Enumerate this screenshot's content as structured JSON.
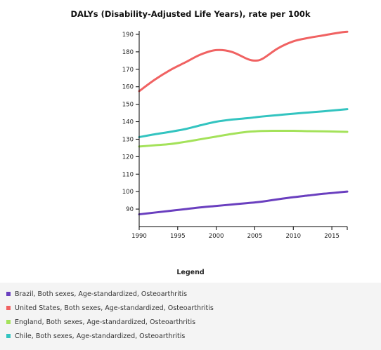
{
  "chart_data": {
    "type": "line",
    "title": "DALYs (Disability-Adjusted Life Years), rate per 100k",
    "xlabel": "",
    "ylabel": "",
    "xlim": [
      1990,
      2017
    ],
    "ylim": [
      80,
      192
    ],
    "x_ticks": [
      1990,
      1995,
      2000,
      2005,
      2010,
      2015
    ],
    "y_ticks": [
      90,
      100,
      110,
      120,
      130,
      140,
      150,
      160,
      170,
      180,
      190
    ],
    "x": [
      1990,
      1992,
      1994,
      1996,
      1998,
      2000,
      2002,
      2004,
      2005,
      2006,
      2008,
      2010,
      2012,
      2014,
      2016,
      2017
    ],
    "series": [
      {
        "name": "Brazil, Both sexes, Age-standardized, Osteoarthritis",
        "color": "#6a3fbf",
        "values": [
          87.0,
          88.0,
          89.0,
          90.0,
          91.0,
          91.8,
          92.6,
          93.4,
          93.8,
          94.3,
          95.6,
          96.8,
          97.8,
          98.8,
          99.6,
          100.0
        ]
      },
      {
        "name": "United States, Both sexes, Age-standardized, Osteoarthritis",
        "color": "#f06262",
        "values": [
          157.5,
          164.0,
          169.5,
          174.0,
          178.5,
          181.0,
          180.0,
          176.0,
          175.0,
          176.0,
          182.0,
          186.0,
          188.0,
          189.5,
          191.0,
          191.5
        ]
      },
      {
        "name": "England, Both sexes, Age-standardized, Osteoarthritis",
        "color": "#a4e25a",
        "values": [
          125.8,
          126.5,
          127.2,
          128.5,
          130.0,
          131.5,
          133.0,
          134.2,
          134.5,
          134.7,
          134.8,
          134.8,
          134.6,
          134.5,
          134.3,
          134.2
        ]
      },
      {
        "name": "Chile, Both sexes, Age-standardized, Osteoarthritis",
        "color": "#33c4c0",
        "values": [
          131.2,
          132.8,
          134.2,
          135.8,
          138.0,
          140.0,
          141.2,
          142.0,
          142.5,
          143.0,
          143.8,
          144.6,
          145.3,
          146.0,
          146.8,
          147.2
        ]
      }
    ],
    "grid": false,
    "legend_position": "bottom",
    "legend_title": "Legend"
  }
}
